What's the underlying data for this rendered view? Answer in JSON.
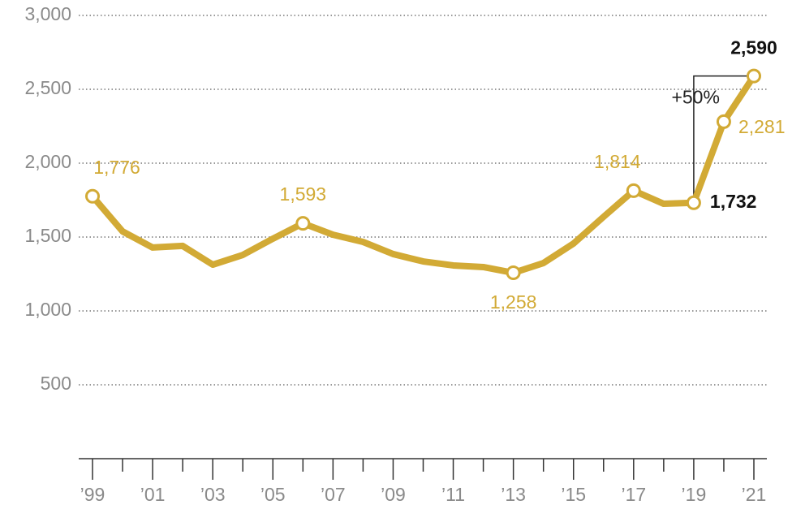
{
  "chart_data": {
    "type": "line",
    "x": [
      1999,
      2000,
      2001,
      2002,
      2003,
      2004,
      2005,
      2006,
      2007,
      2008,
      2009,
      2010,
      2011,
      2012,
      2013,
      2014,
      2015,
      2016,
      2017,
      2018,
      2019,
      2020,
      2021
    ],
    "series": [
      {
        "color": "#d2aa35",
        "values": [
          1776,
          1538,
          1429,
          1440,
          1313,
          1379,
          1489,
          1593,
          1516,
          1467,
          1385,
          1335,
          1308,
          1297,
          1258,
          1324,
          1456,
          1637,
          1814,
          1725,
          1732,
          2281,
          2590
        ],
        "value_labels": [
          "1,776",
          null,
          null,
          null,
          null,
          null,
          null,
          "1,593",
          null,
          null,
          null,
          null,
          null,
          null,
          "1,258",
          null,
          null,
          null,
          "1,814",
          null,
          "1,732",
          "2,281",
          "2,590"
        ],
        "emphasis": [
          20,
          22
        ]
      }
    ],
    "annotation": "+50%",
    "xlim": [
      1999,
      2021
    ],
    "xticks": [
      {
        "value": 1999,
        "label": "’99"
      },
      {
        "value": 2001,
        "label": "’01"
      },
      {
        "value": 2003,
        "label": "’03"
      },
      {
        "value": 2005,
        "label": "’05"
      },
      {
        "value": 2007,
        "label": "’07"
      },
      {
        "value": 2009,
        "label": "’09"
      },
      {
        "value": 2011,
        "label": "’11"
      },
      {
        "value": 2013,
        "label": "’13"
      },
      {
        "value": 2015,
        "label": "’15"
      },
      {
        "value": 2017,
        "label": "’17"
      },
      {
        "value": 2019,
        "label": "’19"
      },
      {
        "value": 2021,
        "label": "’21"
      }
    ],
    "x_minor_ticks": [
      2000,
      2002,
      2004,
      2006,
      2008,
      2010,
      2012,
      2014,
      2016,
      2018,
      2020
    ],
    "ylim": [
      0,
      3000
    ],
    "yticks": [
      500,
      {
        "value": 1000,
        "label": "1,000"
      },
      {
        "value": 1500,
        "label": "1,500"
      },
      {
        "value": 2000,
        "label": "2,000"
      },
      {
        "value": 2500,
        "label": "2,500"
      },
      {
        "value": 3000,
        "label": "3,000"
      }
    ],
    "grid": true
  }
}
